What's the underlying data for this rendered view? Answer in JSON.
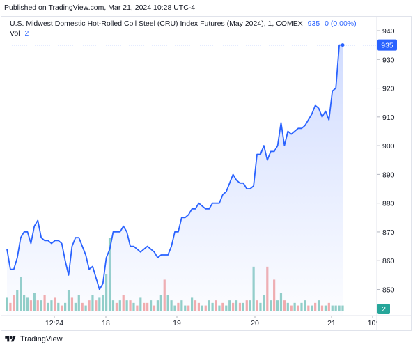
{
  "header": {
    "published": "Published on TradingView.com, Mar 21, 2024 10:28 UTC-4"
  },
  "legend": {
    "title": "U.S. Midwest Domestic Hot-Rolled Coil Steel (CRU) Index Futures (May 2024), 1, COMEX",
    "last_value": "935",
    "change": "0 (0.00%)",
    "volume_label": "Vol",
    "volume_value": "2"
  },
  "footer": {
    "brand": "TradingView"
  },
  "colors": {
    "line": "#2962ff",
    "area_top": "#c9d6ff",
    "vol_up": "#8ccdc4",
    "vol_down": "#f4a8a8",
    "price_label_bg": "#2962ff",
    "vol_label_bg": "#26a69a"
  },
  "chart_data": {
    "type": "area",
    "y_axis": {
      "min": 845,
      "max": 940,
      "ticks": [
        940,
        930,
        920,
        910,
        900,
        890,
        880,
        870,
        860,
        850
      ]
    },
    "x_tick_labels": [
      "12:24",
      "18",
      "19",
      "20",
      "21",
      "10:"
    ],
    "last_price_label": "935",
    "volume_label": "2",
    "price": [
      864,
      857,
      857,
      861,
      868,
      870,
      870,
      866,
      872,
      874,
      868,
      867,
      867,
      866,
      867,
      867,
      866,
      860,
      855,
      865,
      868,
      868,
      865,
      862,
      857,
      858,
      854,
      850,
      852,
      861,
      864,
      870,
      870,
      870,
      872,
      870,
      865,
      865,
      864,
      863,
      864,
      865,
      864,
      863,
      861,
      862,
      862,
      862,
      865,
      870,
      870,
      875,
      875,
      876,
      878,
      878,
      880,
      879,
      878,
      878,
      880,
      880,
      880,
      883,
      884,
      887,
      890,
      888,
      887,
      887,
      885,
      885,
      886,
      897,
      897,
      900,
      895,
      898,
      898,
      900,
      908,
      900,
      905,
      904,
      905,
      906,
      906,
      907,
      909,
      911,
      914,
      913,
      910,
      912,
      909,
      919,
      920,
      935,
      935
    ],
    "volume": [
      5,
      3,
      6,
      8,
      13,
      6,
      5,
      4,
      7,
      4,
      4,
      6,
      3,
      4,
      5,
      3,
      2,
      3,
      8,
      5,
      3,
      6,
      3,
      2,
      4,
      6,
      4,
      5,
      6,
      14,
      28,
      4,
      3,
      4,
      6,
      4,
      4,
      3,
      2,
      5,
      3,
      3,
      4,
      2,
      4,
      6,
      12,
      6,
      4,
      2,
      3,
      4,
      2,
      2,
      5,
      4,
      3,
      2,
      2,
      4,
      3,
      4,
      2,
      3,
      2,
      4,
      3,
      4,
      3,
      3,
      4,
      4,
      17,
      4,
      3,
      6,
      17,
      4,
      12,
      4,
      7,
      4,
      3,
      2,
      3,
      2,
      3,
      4,
      2,
      2,
      3,
      4,
      2,
      2,
      3,
      2,
      2,
      2,
      2
    ],
    "volume_up": [
      true,
      false,
      false,
      true,
      true,
      true,
      true,
      false,
      true,
      false,
      true,
      false,
      true,
      true,
      false,
      true,
      false,
      true,
      true,
      false,
      true,
      true,
      false,
      true,
      false,
      true,
      false,
      true,
      true,
      true,
      true,
      true,
      false,
      true,
      false,
      true,
      false,
      true,
      false,
      true,
      false,
      false,
      true,
      false,
      true,
      true,
      false,
      true,
      true,
      true,
      false,
      true,
      true,
      false,
      true,
      false,
      false,
      true,
      false,
      true,
      true,
      false,
      true,
      false,
      true,
      true,
      false,
      true,
      false,
      true,
      false,
      true,
      true,
      false,
      true,
      true,
      false,
      true,
      false,
      true,
      true,
      false,
      true,
      false,
      true,
      false,
      true,
      true,
      false,
      true,
      false,
      true,
      false,
      true,
      false,
      true,
      true,
      true,
      true
    ],
    "x_range": [
      0,
      110
    ],
    "day_boundaries": [
      30,
      50,
      72,
      94
    ]
  }
}
